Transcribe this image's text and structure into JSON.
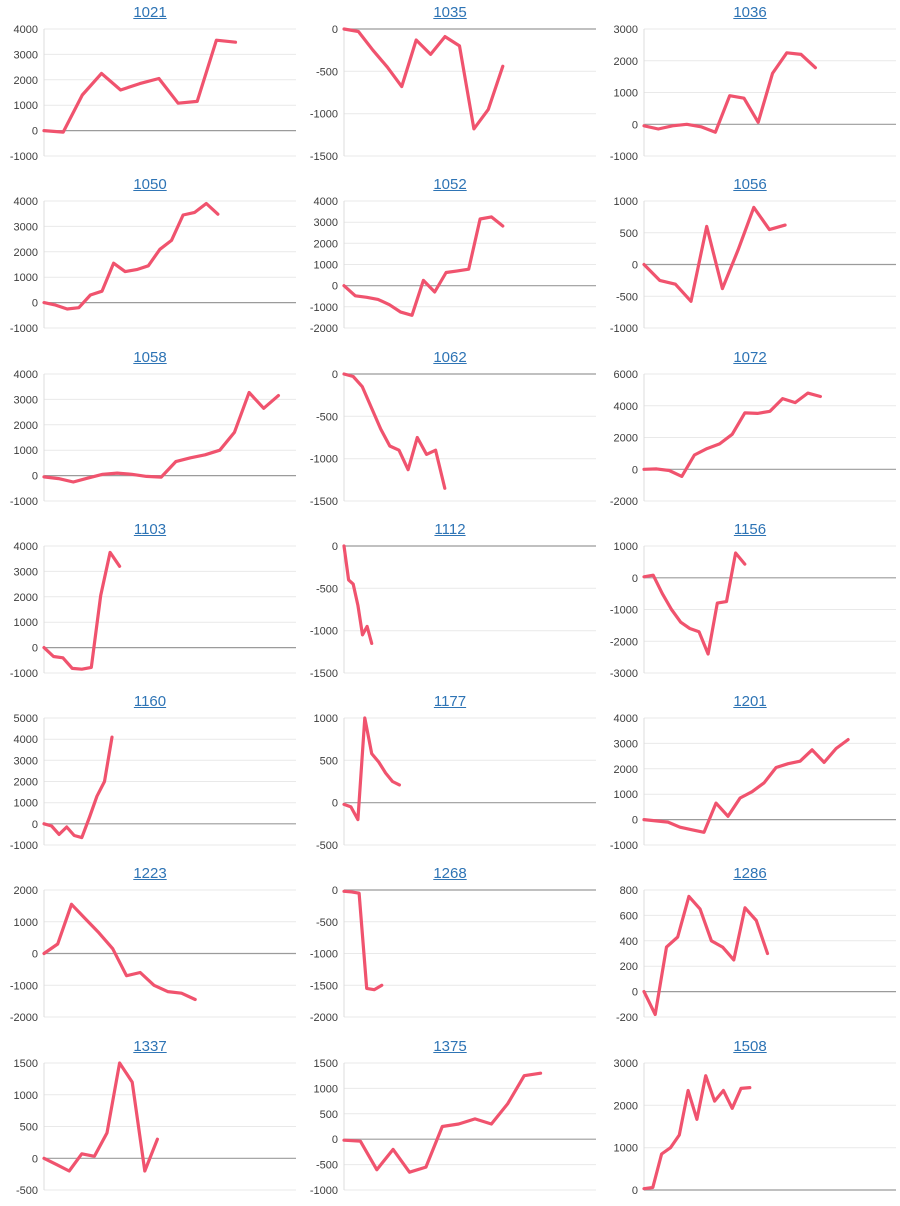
{
  "page": {
    "background": "#ffffff"
  },
  "style": {
    "line_color": "#f0536e",
    "line_width": 3.2,
    "title_color": "#2e74b5",
    "tick_color": "#3d3d3d",
    "grid_color": "#e9e9e9",
    "zero_line_color": "#9b9b9b",
    "axis_line_color": "#dcdcdc"
  },
  "chart_defaults": {
    "type": "line",
    "grid": true,
    "legend": false,
    "x_axis_labels": false,
    "markers": false
  },
  "chart_data": [
    {
      "type": "line",
      "title": "1021",
      "ylim": [
        -1000,
        4000
      ],
      "yticks": [
        4000,
        3000,
        2000,
        1000,
        0,
        -1000
      ],
      "x_end": 0.76,
      "values": [
        0,
        -60,
        1400,
        2250,
        1600,
        1850,
        2050,
        1080,
        1150,
        3560,
        3480
      ]
    },
    {
      "type": "line",
      "title": "1035",
      "ylim": [
        -1500,
        0
      ],
      "yticks": [
        0,
        -500,
        -1000,
        -1500
      ],
      "x_end": 0.63,
      "values": [
        0,
        -30,
        -250,
        -450,
        -680,
        -130,
        -300,
        -90,
        -200,
        -1180,
        -950,
        -440
      ]
    },
    {
      "type": "line",
      "title": "1036",
      "ylim": [
        -1000,
        3000
      ],
      "yticks": [
        3000,
        2000,
        1000,
        0,
        -1000
      ],
      "x_end": 0.68,
      "values": [
        -50,
        -150,
        -50,
        0,
        -80,
        -250,
        900,
        820,
        60,
        1600,
        2250,
        2200,
        1780
      ]
    },
    {
      "type": "line",
      "title": "1050",
      "ylim": [
        -1000,
        4000
      ],
      "yticks": [
        4000,
        3000,
        2000,
        1000,
        0,
        -1000
      ],
      "x_end": 0.69,
      "values": [
        0,
        -100,
        -250,
        -200,
        300,
        450,
        1550,
        1220,
        1300,
        1450,
        2100,
        2450,
        3450,
        3550,
        3900,
        3480
      ]
    },
    {
      "type": "line",
      "title": "1052",
      "ylim": [
        -2000,
        4000
      ],
      "yticks": [
        4000,
        3000,
        2000,
        1000,
        0,
        -1000,
        -2000
      ],
      "x_end": 0.63,
      "values": [
        0,
        -480,
        -550,
        -650,
        -900,
        -1250,
        -1400,
        250,
        -300,
        620,
        700,
        780,
        3150,
        3250,
        2820
      ]
    },
    {
      "type": "line",
      "title": "1056",
      "ylim": [
        -1000,
        1000
      ],
      "yticks": [
        1000,
        500,
        0,
        -500,
        -1000
      ],
      "x_end": 0.56,
      "values": [
        0,
        -250,
        -310,
        -580,
        600,
        -380,
        230,
        900,
        550,
        620
      ]
    },
    {
      "type": "line",
      "title": "1058",
      "ylim": [
        -1000,
        4000
      ],
      "yticks": [
        4000,
        3000,
        2000,
        1000,
        0,
        -1000
      ],
      "x_end": 0.93,
      "values": [
        -50,
        -120,
        -250,
        -100,
        50,
        100,
        50,
        -30,
        -60,
        550,
        700,
        820,
        1000,
        1700,
        3270,
        2650,
        3150
      ]
    },
    {
      "type": "line",
      "title": "1062",
      "ylim": [
        -1500,
        0
      ],
      "yticks": [
        0,
        -500,
        -1000,
        -1500
      ],
      "x_end": 0.4,
      "values": [
        0,
        -30,
        -150,
        -400,
        -650,
        -850,
        -900,
        -1130,
        -750,
        -950,
        -900,
        -1350
      ]
    },
    {
      "type": "line",
      "title": "1072",
      "ylim": [
        -2000,
        6000
      ],
      "yticks": [
        6000,
        4000,
        2000,
        0,
        -2000
      ],
      "x_end": 0.7,
      "values": [
        0,
        20,
        -80,
        -450,
        900,
        1300,
        1600,
        2200,
        3550,
        3520,
        3650,
        4450,
        4200,
        4800,
        4580
      ]
    },
    {
      "type": "line",
      "title": "1103",
      "ylim": [
        -1000,
        4000
      ],
      "yticks": [
        4000,
        3000,
        2000,
        1000,
        0,
        -1000
      ],
      "x_end": 0.3,
      "values": [
        0,
        -350,
        -400,
        -820,
        -850,
        -780,
        2050,
        3750,
        3200
      ]
    },
    {
      "type": "line",
      "title": "1112",
      "ylim": [
        -1500,
        0
      ],
      "yticks": [
        0,
        -500,
        -1000,
        -1500
      ],
      "x_end": 0.11,
      "values": [
        0,
        -400,
        -450,
        -700,
        -1050,
        -950,
        -1150
      ]
    },
    {
      "type": "line",
      "title": "1156",
      "ylim": [
        -3000,
        1000
      ],
      "yticks": [
        1000,
        0,
        -1000,
        -2000,
        -3000
      ],
      "x_end": 0.4,
      "values": [
        30,
        80,
        -500,
        -1000,
        -1400,
        -1600,
        -1700,
        -2400,
        -800,
        -750,
        780,
        430
      ]
    },
    {
      "type": "line",
      "title": "1160",
      "ylim": [
        -1000,
        5000
      ],
      "yticks": [
        5000,
        4000,
        3000,
        2000,
        1000,
        0,
        -1000
      ],
      "x_end": 0.27,
      "values": [
        0,
        -100,
        -500,
        -150,
        -550,
        -650,
        300,
        1300,
        2000,
        4100
      ]
    },
    {
      "type": "line",
      "title": "1177",
      "ylim": [
        -500,
        1000
      ],
      "yticks": [
        1000,
        500,
        0,
        -500
      ],
      "x_end": 0.22,
      "values": [
        -20,
        -50,
        -200,
        1000,
        580,
        480,
        350,
        250,
        210
      ]
    },
    {
      "type": "line",
      "title": "1201",
      "ylim": [
        -1000,
        4000
      ],
      "yticks": [
        4000,
        3000,
        2000,
        1000,
        0,
        -1000
      ],
      "x_end": 0.81,
      "values": [
        0,
        -50,
        -100,
        -300,
        -400,
        -500,
        650,
        130,
        850,
        1100,
        1450,
        2050,
        2200,
        2300,
        2750,
        2250,
        2800,
        3150
      ]
    },
    {
      "type": "line",
      "title": "1223",
      "ylim": [
        -2000,
        2000
      ],
      "yticks": [
        2000,
        1000,
        0,
        -1000,
        -2000
      ],
      "x_end": 0.6,
      "values": [
        0,
        300,
        1550,
        1100,
        650,
        150,
        -700,
        -600,
        -1000,
        -1200,
        -1250,
        -1450
      ]
    },
    {
      "type": "line",
      "title": "1268",
      "ylim": [
        -2000,
        0
      ],
      "yticks": [
        0,
        -500,
        -1000,
        -1500,
        -2000
      ],
      "x_end": 0.15,
      "values": [
        -20,
        -30,
        -50,
        -1550,
        -1570,
        -1500
      ]
    },
    {
      "type": "line",
      "title": "1286",
      "ylim": [
        -200,
        800
      ],
      "yticks": [
        800,
        600,
        400,
        200,
        0,
        -200
      ],
      "x_end": 0.49,
      "values": [
        0,
        -180,
        350,
        430,
        750,
        650,
        400,
        350,
        250,
        660,
        560,
        300
      ]
    },
    {
      "type": "line",
      "title": "1337",
      "ylim": [
        -500,
        1500
      ],
      "yticks": [
        1500,
        1000,
        500,
        0,
        -500
      ],
      "x_end": 0.45,
      "values": [
        0,
        -100,
        -200,
        70,
        30,
        400,
        1500,
        1200,
        -200,
        300
      ]
    },
    {
      "type": "line",
      "title": "1375",
      "ylim": [
        -1000,
        1500
      ],
      "yticks": [
        1500,
        1000,
        500,
        0,
        -500,
        -1000
      ],
      "x_end": 0.78,
      "values": [
        -20,
        -40,
        -600,
        -200,
        -650,
        -550,
        250,
        300,
        400,
        300,
        700,
        1250,
        1300
      ]
    },
    {
      "type": "line",
      "title": "1508",
      "ylim": [
        0,
        3000
      ],
      "yticks": [
        3000,
        2000,
        1000,
        0
      ],
      "x_end": 0.42,
      "values": [
        30,
        60,
        850,
        1000,
        1300,
        2350,
        1670,
        2700,
        2100,
        2350,
        1930,
        2400,
        2420
      ]
    }
  ]
}
